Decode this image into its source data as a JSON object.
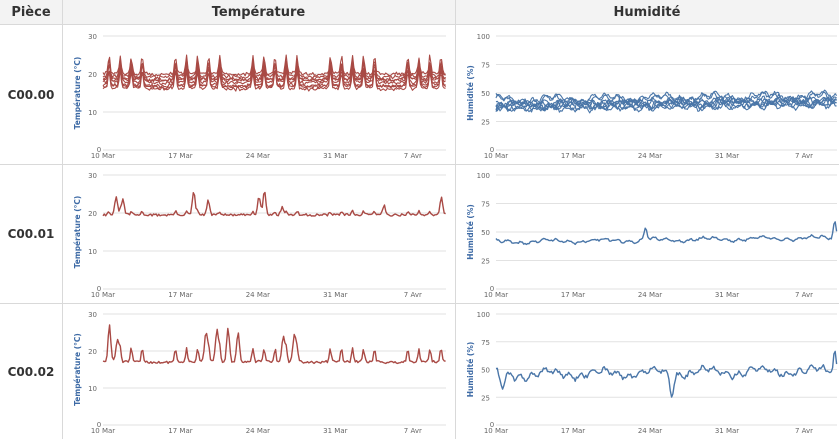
{
  "headers": {
    "room": "Pièce",
    "temperature": "Température",
    "humidity": "Humidité"
  },
  "colors": {
    "temperature": "#a94a45",
    "humidity": "#4a76a8",
    "axis_title": "#3d6aa5",
    "grid": "#e2e2e2",
    "tick": "#666666"
  },
  "rows": [
    {
      "room": "C00.00"
    },
    {
      "room": "C00.01"
    },
    {
      "room": "C00.02"
    }
  ],
  "chart_data": [
    {
      "type": "line",
      "room": "C00.00",
      "variable": "temperature",
      "ylabel": "Température (°C)",
      "ylim": [
        0,
        30
      ],
      "yticks": [
        0,
        10,
        20,
        30
      ],
      "xticks": [
        "10 Mar",
        "17 Mar",
        "24 Mar",
        "31 Mar",
        "7 Avr"
      ],
      "xrange_days": [
        0,
        31
      ],
      "lines": 8,
      "base": 19.5,
      "amp": 4.5,
      "spiky": true,
      "hotspots": [],
      "dips": [],
      "seed": 11
    },
    {
      "type": "line",
      "room": "C00.00",
      "variable": "humidity",
      "ylabel": "Humidité (%)",
      "ylim": [
        0,
        100
      ],
      "yticks": [
        0,
        25,
        50,
        75,
        100
      ],
      "xticks": [
        "10 Mar",
        "17 Mar",
        "24 Mar",
        "31 Mar",
        "7 Avr"
      ],
      "xrange_days": [
        0,
        31
      ],
      "lines": 8,
      "base": 41,
      "amp": 8,
      "spiky": false,
      "hotspots": [],
      "dips": [],
      "seed": 21
    },
    {
      "type": "line",
      "room": "C00.01",
      "variable": "temperature",
      "ylabel": "Température (°C)",
      "ylim": [
        0,
        30
      ],
      "yticks": [
        0,
        10,
        20,
        30
      ],
      "xticks": [
        "10 Mar",
        "17 Mar",
        "24 Mar",
        "31 Mar",
        "7 Avr"
      ],
      "xrange_days": [
        0,
        31
      ],
      "lines": 1,
      "base": 20,
      "amp": 1.5,
      "spiky": true,
      "hotspots": [
        [
          1.2,
          24.5
        ],
        [
          1.8,
          24
        ],
        [
          8.2,
          26
        ],
        [
          9.5,
          23
        ],
        [
          14.1,
          25
        ],
        [
          14.6,
          25.5
        ],
        [
          16.2,
          22
        ],
        [
          25.4,
          22.5
        ],
        [
          30.6,
          24
        ]
      ],
      "dips": [],
      "seed": 31
    },
    {
      "type": "line",
      "room": "C00.01",
      "variable": "humidity",
      "ylabel": "Humidité (%)",
      "ylim": [
        0,
        100
      ],
      "yticks": [
        0,
        25,
        50,
        75,
        100
      ],
      "xticks": [
        "10 Mar",
        "17 Mar",
        "24 Mar",
        "31 Mar",
        "7 Avr"
      ],
      "xrange_days": [
        0,
        31
      ],
      "lines": 1,
      "base": 41,
      "amp": 4,
      "spiky": false,
      "hotspots": [
        [
          13.6,
          51
        ],
        [
          30.8,
          55
        ]
      ],
      "dips": [],
      "seed": 41
    },
    {
      "type": "line",
      "room": "C00.02",
      "variable": "temperature",
      "ylabel": "Température (°C)",
      "ylim": [
        0,
        30
      ],
      "yticks": [
        0,
        10,
        20,
        30
      ],
      "xticks": [
        "10 Mar",
        "17 Mar",
        "24 Mar",
        "31 Mar",
        "7 Avr"
      ],
      "xrange_days": [
        0,
        31
      ],
      "lines": 1,
      "base": 18,
      "amp": 6,
      "spiky": true,
      "hotspots": [
        [
          0.6,
          25
        ],
        [
          1.3,
          24
        ],
        [
          9.3,
          26
        ],
        [
          10.3,
          27
        ],
        [
          11.3,
          27.5
        ],
        [
          12.2,
          26
        ],
        [
          16.3,
          25
        ],
        [
          17.3,
          25.5
        ]
      ],
      "dips": [],
      "seed": 51
    },
    {
      "type": "line",
      "room": "C00.02",
      "variable": "humidity",
      "ylabel": "Humidité (%)",
      "ylim": [
        0,
        100
      ],
      "yticks": [
        0,
        25,
        50,
        75,
        100
      ],
      "xticks": [
        "10 Mar",
        "17 Mar",
        "24 Mar",
        "31 Mar",
        "7 Avr"
      ],
      "xrange_days": [
        0,
        31
      ],
      "lines": 1,
      "base": 45,
      "amp": 9,
      "spiky": false,
      "hotspots": [
        [
          30.8,
          63
        ]
      ],
      "dips": [
        [
          0.6,
          32
        ],
        [
          16,
          27
        ]
      ],
      "seed": 61
    }
  ]
}
